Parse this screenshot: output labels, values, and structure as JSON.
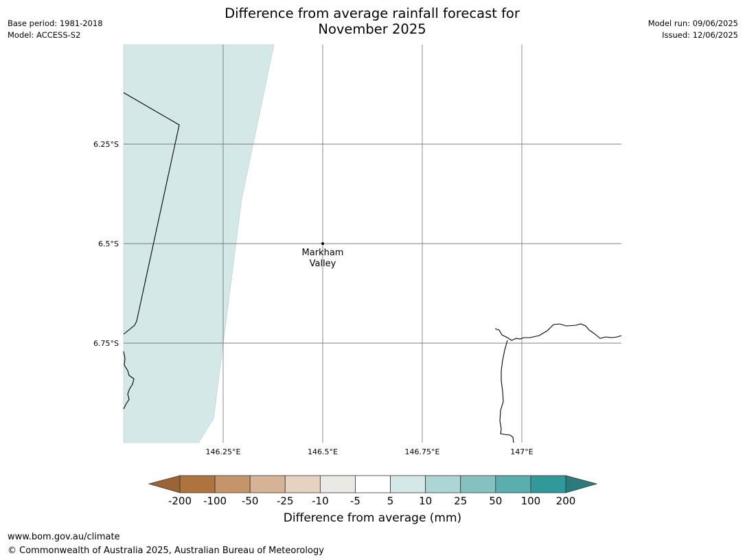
{
  "header": {
    "title_line1": "Difference from average rainfall forecast for",
    "title_line2": "November 2025",
    "base_period": "Base period: 1981-2018",
    "model": "Model: ACCESS-S2",
    "model_run": "Model run: 09/06/2025",
    "issued": "Issued: 12/06/2025"
  },
  "map": {
    "lat_labels": [
      "6.25°S",
      "6.5°S",
      "6.75°S"
    ],
    "lon_labels": [
      "146.25°E",
      "146.5°E",
      "146.75°E",
      "147°E"
    ],
    "place": {
      "name_line1": "Markham",
      "name_line2": "Valley"
    }
  },
  "colorbar": {
    "ticks": [
      "-200",
      "-100",
      "-50",
      "-25",
      "-10",
      "-5",
      "5",
      "10",
      "25",
      "50",
      "100",
      "200"
    ],
    "colors": [
      "#9a6433",
      "#ae743d",
      "#c39569",
      "#d5b394",
      "#e6d2c1",
      "#ebe9e6",
      "#ffffff",
      "#d5e8e8",
      "#acd5d5",
      "#84c1bf",
      "#5aaeae",
      "#309999",
      "#2a7c7c"
    ],
    "label": "Difference from average (mm)"
  },
  "footer": {
    "url": "www.bom.gov.au/climate",
    "copyright": "© Commonwealth of Australia 2025, Australian Bureau of Meteorology"
  }
}
